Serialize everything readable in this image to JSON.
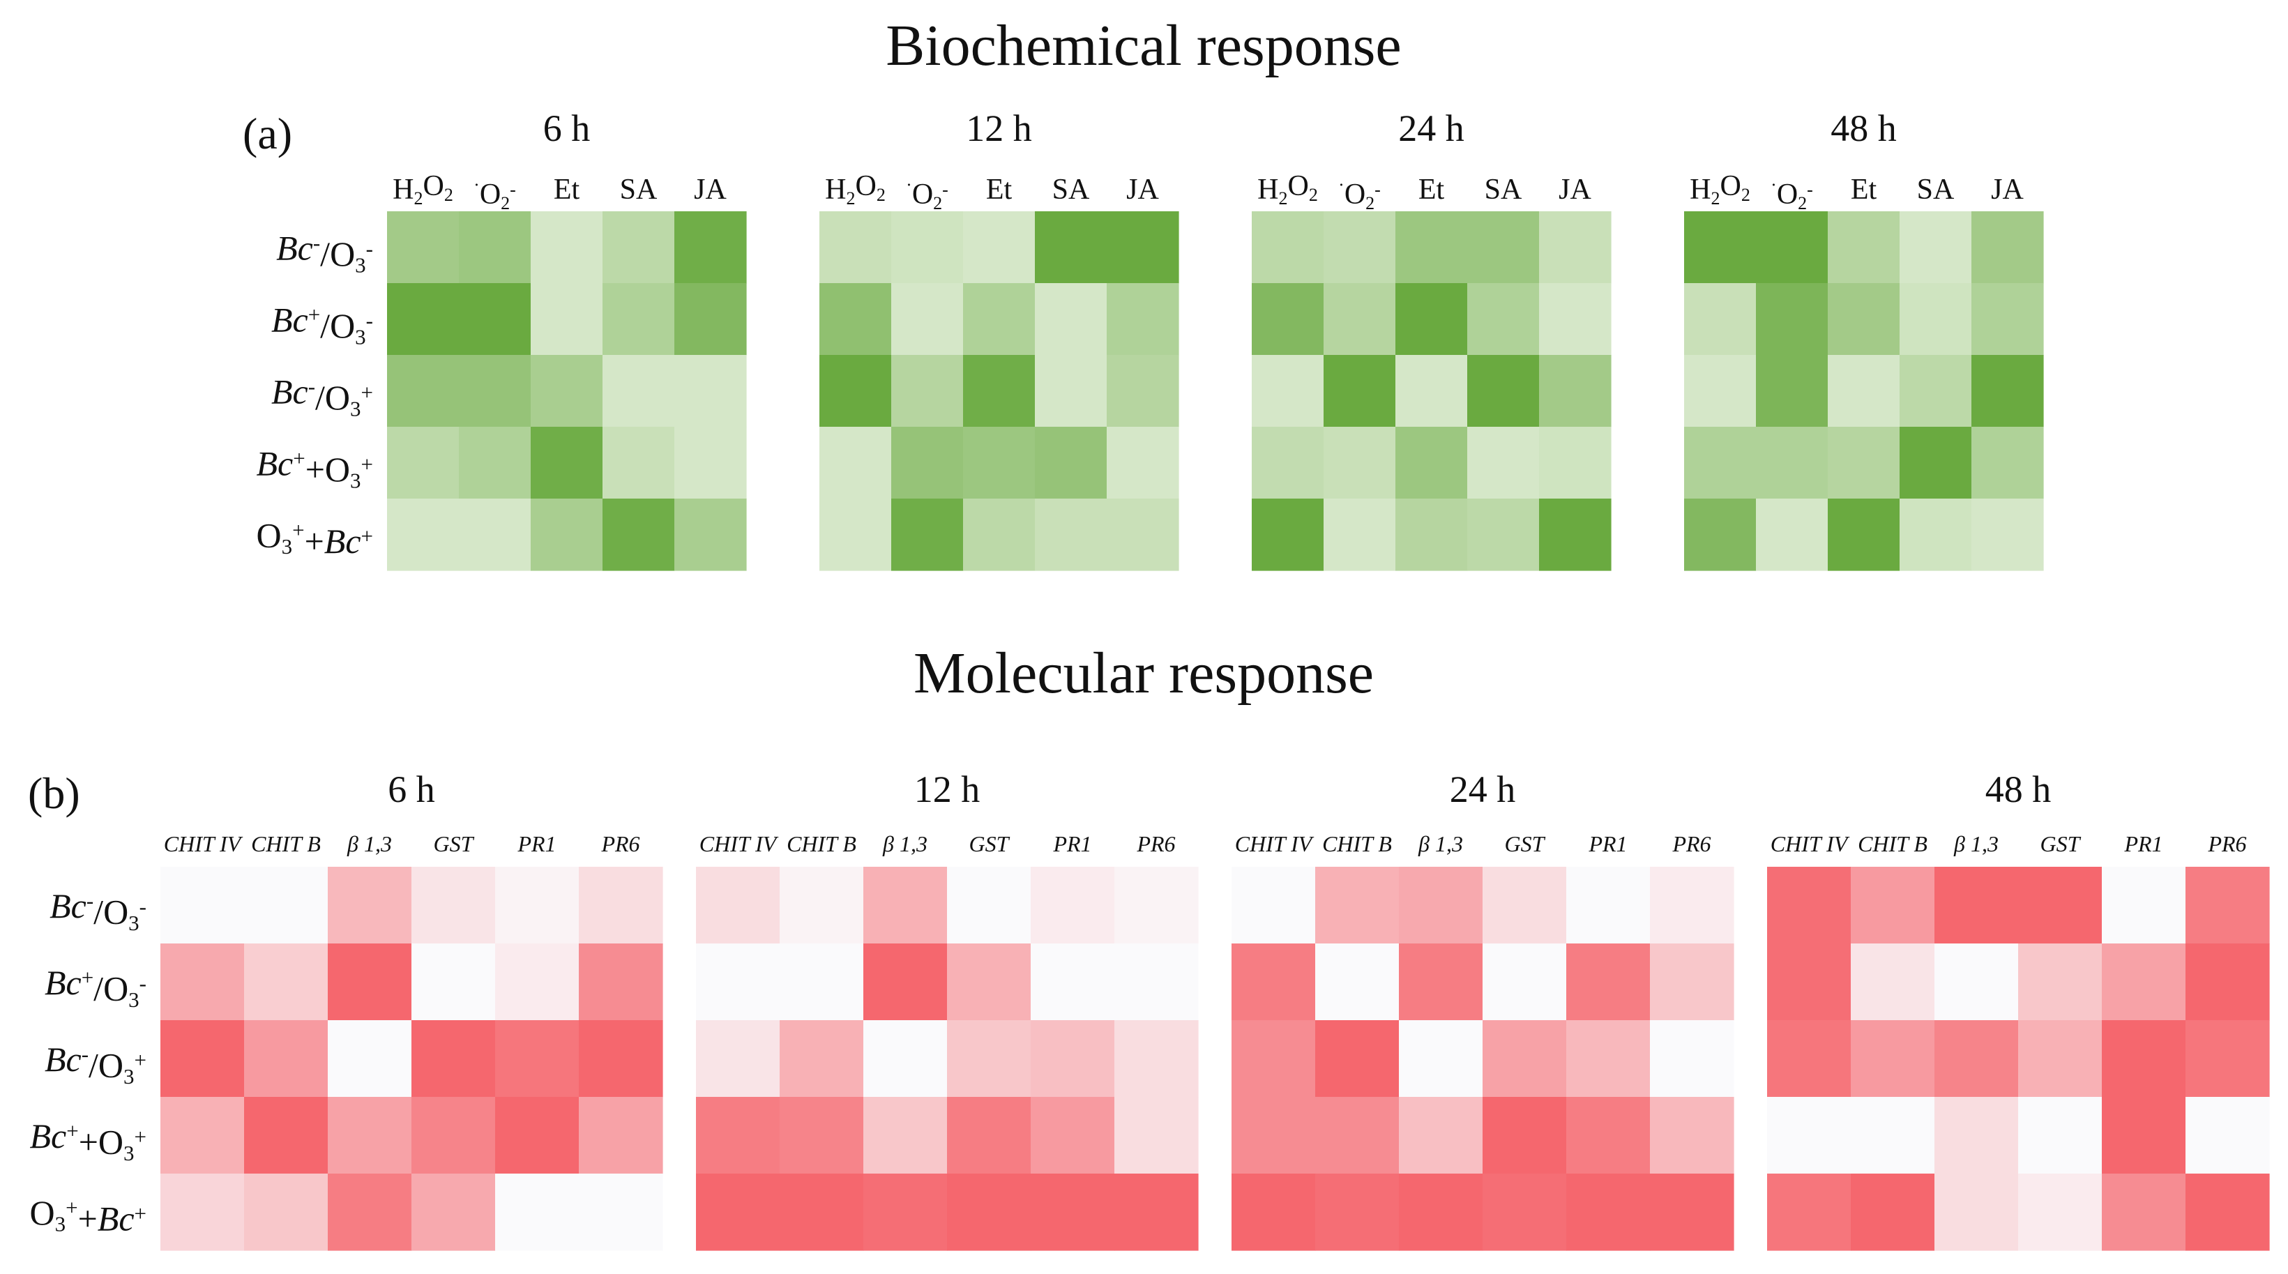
{
  "biochemical": {
    "title": "Biochemical response",
    "panel_label": "(a)",
    "color": "#6aaa40",
    "rows": [
      {
        "name": "Bc-/O3-",
        "parts": [
          {
            "t": "Bc",
            "it": 1
          },
          {
            "t": "-",
            "sup": 1
          },
          {
            "t": "/O"
          },
          {
            "t": "3",
            "sub": 1
          },
          {
            "t": "-",
            "sup": 1
          }
        ]
      },
      {
        "name": "Bc+/O3-",
        "parts": [
          {
            "t": "Bc",
            "it": 1
          },
          {
            "t": "+",
            "sup": 1
          },
          {
            "t": "/O"
          },
          {
            "t": "3",
            "sub": 1
          },
          {
            "t": "-",
            "sup": 1
          }
        ]
      },
      {
        "name": "Bc-/O3+",
        "parts": [
          {
            "t": "Bc",
            "it": 1
          },
          {
            "t": "-",
            "sup": 1
          },
          {
            "t": "/O"
          },
          {
            "t": "3",
            "sub": 1
          },
          {
            "t": "+",
            "sup": 1
          }
        ]
      },
      {
        "name": "Bc++O3+",
        "parts": [
          {
            "t": "Bc",
            "it": 1
          },
          {
            "t": "+",
            "sup": 1
          },
          {
            "t": "+O"
          },
          {
            "t": "3",
            "sub": 1
          },
          {
            "t": "+",
            "sup": 1
          }
        ]
      },
      {
        "name": "O3++Bc+",
        "parts": [
          {
            "t": "O"
          },
          {
            "t": "3",
            "sub": 1
          },
          {
            "t": "+",
            "sup": 1
          },
          {
            "t": "+"
          },
          {
            "t": "Bc",
            "it": 1
          },
          {
            "t": "+",
            "sup": 1
          }
        ]
      }
    ],
    "columns": [
      {
        "name": "H2O2",
        "parts": [
          {
            "t": "H"
          },
          {
            "t": "2",
            "sub": 1
          },
          {
            "t": "O"
          },
          {
            "t": "2",
            "sub": 1
          }
        ]
      },
      {
        "name": "O2-",
        "parts": [
          {
            "t": "·",
            "sup": 1
          },
          {
            "t": "O"
          },
          {
            "t": "2",
            "sub": 1
          },
          {
            "t": "-",
            "sup": 1
          }
        ]
      },
      {
        "name": "Et",
        "parts": [
          {
            "t": "Et"
          }
        ]
      },
      {
        "name": "SA",
        "parts": [
          {
            "t": "SA"
          }
        ]
      },
      {
        "name": "JA",
        "parts": [
          {
            "t": "JA"
          }
        ]
      }
    ]
  },
  "molecular": {
    "title": "Molecular response",
    "panel_label": "(b)",
    "color": "#f5676e",
    "columns": [
      "CHIT IV",
      "CHIT B",
      "β 1,3",
      "GST",
      "PR1",
      "PR6"
    ]
  },
  "chart_data": [
    {
      "type": "heatmap",
      "title": "Biochemical response",
      "panel": "(a)",
      "value_scale": "relative intensity 0–1 (read from color saturation)",
      "rows": [
        "Bc-/O3-",
        "Bc+/O3-",
        "Bc-/O3+",
        "Bc++O3+",
        "O3++Bc+"
      ],
      "columns": [
        "H2O2",
        "O2-",
        "Et",
        "SA",
        "JA"
      ],
      "timepoints": [
        {
          "label": "6 h",
          "values": [
            [
              0.55,
              0.6,
              0.15,
              0.35,
              0.95
            ],
            [
              1.0,
              1.0,
              0.15,
              0.45,
              0.8
            ],
            [
              0.65,
              0.65,
              0.5,
              0.15,
              0.15
            ],
            [
              0.35,
              0.45,
              0.95,
              0.25,
              0.15
            ],
            [
              0.15,
              0.15,
              0.5,
              0.95,
              0.5
            ]
          ]
        },
        {
          "label": "12 h",
          "values": [
            [
              0.25,
              0.2,
              0.15,
              1.0,
              1.0
            ],
            [
              0.7,
              0.15,
              0.45,
              0.15,
              0.45
            ],
            [
              1.0,
              0.4,
              0.95,
              0.15,
              0.4
            ],
            [
              0.15,
              0.65,
              0.6,
              0.65,
              0.15
            ],
            [
              0.15,
              0.95,
              0.35,
              0.25,
              0.25
            ]
          ]
        },
        {
          "label": "24 h",
          "values": [
            [
              0.35,
              0.3,
              0.6,
              0.6,
              0.25
            ],
            [
              0.8,
              0.4,
              1.0,
              0.45,
              0.15
            ],
            [
              0.15,
              1.0,
              0.15,
              1.0,
              0.55
            ],
            [
              0.3,
              0.25,
              0.6,
              0.15,
              0.2
            ],
            [
              1.0,
              0.15,
              0.4,
              0.35,
              1.0
            ]
          ]
        },
        {
          "label": "48 h",
          "values": [
            [
              1.0,
              1.0,
              0.4,
              0.15,
              0.55
            ],
            [
              0.25,
              0.85,
              0.55,
              0.2,
              0.45
            ],
            [
              0.15,
              0.85,
              0.15,
              0.35,
              1.0
            ],
            [
              0.45,
              0.45,
              0.4,
              1.0,
              0.45
            ],
            [
              0.8,
              0.15,
              1.0,
              0.2,
              0.15
            ]
          ]
        }
      ]
    },
    {
      "type": "heatmap",
      "title": "Molecular response",
      "panel": "(b)",
      "value_scale": "relative intensity 0–1 (read from color saturation)",
      "rows": [
        "Bc-/O3-",
        "Bc+/O3-",
        "Bc-/O3+",
        "Bc++O3+",
        "O3++Bc+"
      ],
      "columns": [
        "CHIT IV",
        "CHIT B",
        "β 1,3",
        "GST",
        "PR1",
        "PR6"
      ],
      "timepoints": [
        {
          "label": "6 h",
          "values": [
            [
              0.0,
              0.0,
              0.45,
              0.15,
              0.05,
              0.2
            ],
            [
              0.55,
              0.3,
              1.0,
              0.0,
              0.1,
              0.75
            ],
            [
              1.0,
              0.65,
              0.0,
              1.0,
              0.9,
              1.0
            ],
            [
              0.5,
              1.0,
              0.6,
              0.8,
              1.0,
              0.6
            ],
            [
              0.25,
              0.35,
              0.85,
              0.55,
              0.0,
              0.0
            ]
          ]
        },
        {
          "label": "12 h",
          "values": [
            [
              0.2,
              0.05,
              0.5,
              0.0,
              0.1,
              0.05
            ],
            [
              0.0,
              0.0,
              1.0,
              0.5,
              0.0,
              0.0
            ],
            [
              0.15,
              0.5,
              0.0,
              0.35,
              0.4,
              0.2
            ],
            [
              0.85,
              0.8,
              0.35,
              0.85,
              0.65,
              0.2
            ],
            [
              1.0,
              1.0,
              0.95,
              1.0,
              1.0,
              1.0
            ]
          ]
        },
        {
          "label": "24 h",
          "values": [
            [
              0.0,
              0.5,
              0.55,
              0.2,
              0.0,
              0.1
            ],
            [
              0.85,
              0.0,
              0.85,
              0.0,
              0.85,
              0.35
            ],
            [
              0.75,
              1.0,
              0.0,
              0.6,
              0.45,
              0.0
            ],
            [
              0.75,
              0.75,
              0.4,
              1.0,
              0.85,
              0.45
            ],
            [
              1.0,
              0.95,
              1.0,
              0.95,
              1.0,
              1.0
            ]
          ]
        },
        {
          "label": "48 h",
          "values": [
            [
              0.95,
              0.65,
              1.0,
              1.0,
              0.0,
              0.85
            ],
            [
              0.95,
              0.15,
              0.0,
              0.35,
              0.6,
              1.0
            ],
            [
              0.9,
              0.65,
              0.8,
              0.5,
              1.0,
              0.9
            ],
            [
              0.0,
              0.0,
              0.2,
              0.0,
              1.0,
              0.0
            ],
            [
              0.9,
              1.0,
              0.2,
              0.1,
              0.75,
              1.0
            ]
          ]
        }
      ]
    }
  ]
}
